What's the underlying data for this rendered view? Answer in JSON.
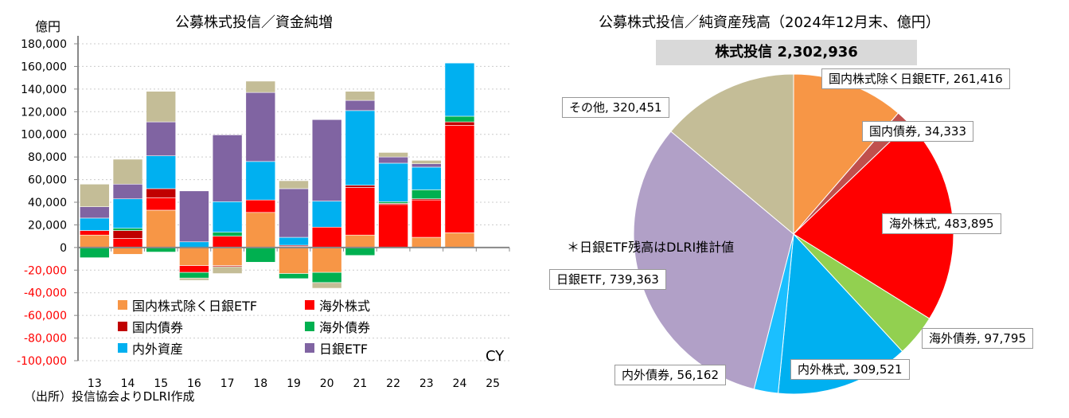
{
  "chart_data": [
    {
      "type": "bar",
      "stacked": true,
      "title": "公募株式投信／資金純増",
      "ylabel": "億円",
      "xlabel": "CY",
      "ylim": [
        -100000,
        180000
      ],
      "yticks": [
        -100000,
        -80000,
        -60000,
        -40000,
        -20000,
        0,
        20000,
        40000,
        60000,
        80000,
        100000,
        120000,
        140000,
        160000,
        180000
      ],
      "ytick_labels": [
        "-100,000",
        "-80,000",
        "-60,000",
        "-40,000",
        "-20,000",
        "0",
        "20,000",
        "40,000",
        "60,000",
        "80,000",
        "100,000",
        "120,000",
        "140,000",
        "160,000",
        "180,000"
      ],
      "grid": true,
      "legend_position": "bottom-left",
      "categories": [
        "13",
        "14",
        "15",
        "16",
        "17",
        "18",
        "19",
        "20",
        "21",
        "22",
        "23",
        "24",
        "25"
      ],
      "series": [
        {
          "name": "国内株式除く日銀ETF",
          "color": "#F79646",
          "values": [
            11000,
            -6000,
            33000,
            -16000,
            -16000,
            31000,
            -23000,
            -22000,
            11000,
            0,
            9000,
            13000,
            null
          ]
        },
        {
          "name": "海外株式",
          "color": "#FF0000",
          "values": [
            4000,
            8000,
            11000,
            -6000,
            10000,
            11000,
            1000,
            18000,
            42000,
            38000,
            33000,
            95000,
            null
          ]
        },
        {
          "name": "国内債券",
          "color": "#C00000",
          "values": [
            0,
            7000,
            8000,
            0,
            -1000,
            0,
            1000,
            0,
            2000,
            1000,
            1000,
            3000,
            null
          ]
        },
        {
          "name": "海外債券",
          "color": "#00B050",
          "values": [
            -9000,
            2000,
            -4000,
            -5000,
            3500,
            -13000,
            -4500,
            -9000,
            -7000,
            1500,
            8000,
            5000,
            null
          ]
        },
        {
          "name": "内外資産",
          "color": "#00B0F0",
          "values": [
            11000,
            26000,
            29000,
            5000,
            27000,
            34000,
            7000,
            23000,
            66000,
            34000,
            20000,
            47000,
            null
          ]
        },
        {
          "name": "日銀ETF",
          "color": "#8064A2",
          "values": [
            10000,
            13000,
            30000,
            45000,
            59000,
            61000,
            43000,
            72000,
            9000,
            5500,
            3000,
            0,
            null
          ]
        },
        {
          "color": "#C4BD97",
          "values": [
            20000,
            22000,
            27000,
            -2000,
            -6000,
            10000,
            7000,
            -5000,
            8000,
            4000,
            3000,
            0,
            null
          ]
        }
      ]
    },
    {
      "type": "pie",
      "title": "公募株式投信／純資産残高（2024年12月末、億円）",
      "total_label": "株式投信 2,302,936",
      "note": "＊日銀ETF残高はDLRI推計値",
      "slices": [
        {
          "name": "国内株式除く日銀ETF",
          "value": 261416,
          "label": "国内株式除く日銀ETF, 261,416",
          "color": "#F79646"
        },
        {
          "name": "国内債券",
          "value": 34333,
          "label": "国内債券, 34,333",
          "color": "#C0504D"
        },
        {
          "name": "海外株式",
          "value": 483895,
          "label": "海外株式, 483,895",
          "color": "#FF0000"
        },
        {
          "name": "海外債券",
          "value": 97795,
          "label": "海外債券, 97,795",
          "color": "#92D050"
        },
        {
          "name": "内外株式",
          "value": 309521,
          "label": "内外株式, 309,521",
          "color": "#00B0F0"
        },
        {
          "name": "内外債券",
          "value": 56162,
          "label": "内外債券, 56,162",
          "color": "#1BBFFF"
        },
        {
          "name": "日銀ETF",
          "value": 739363,
          "label": "日銀ETF, 739,363",
          "color": "#B1A0C7"
        },
        {
          "name": "その他",
          "value": 320451,
          "label": "その他, 320,451",
          "color": "#C4BD97"
        }
      ]
    }
  ],
  "source": "（出所）投信協会よりDLRI作成"
}
